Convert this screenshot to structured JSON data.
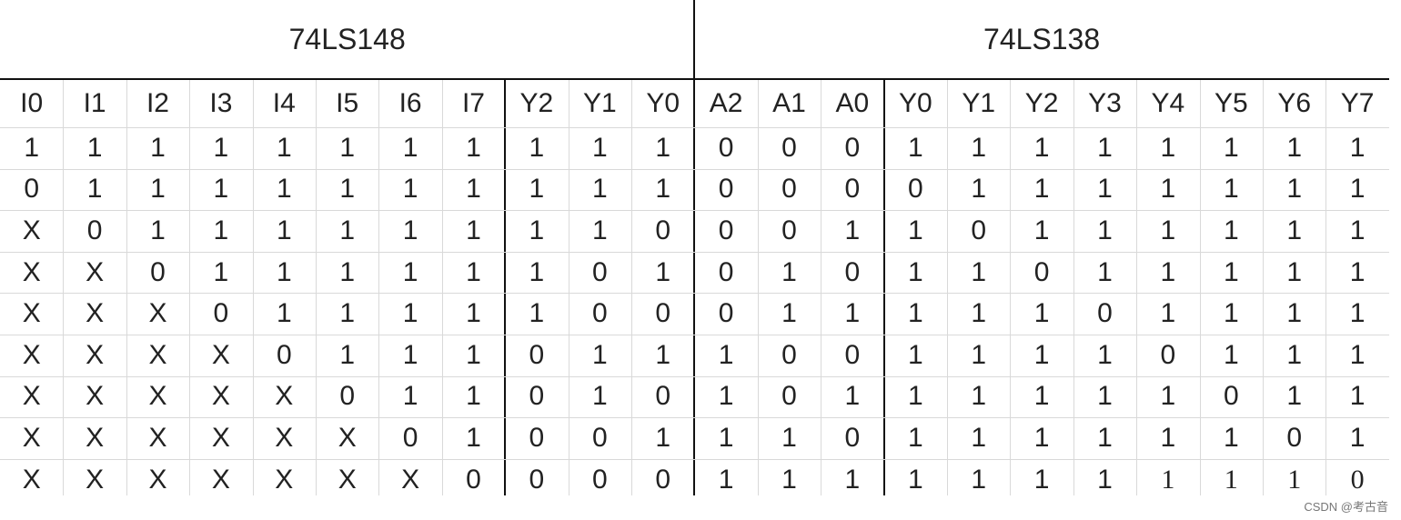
{
  "table": {
    "groups": [
      "74LS148",
      "74LS138"
    ],
    "header": [
      "I0",
      "I1",
      "I2",
      "I3",
      "I4",
      "I5",
      "I6",
      "I7",
      "Y2",
      "Y1",
      "Y0",
      "A2",
      "A1",
      "A0",
      "Y0",
      "Y1",
      "Y2",
      "Y3",
      "Y4",
      "Y5",
      "Y6",
      "Y7"
    ],
    "rows": [
      [
        "1",
        "1",
        "1",
        "1",
        "1",
        "1",
        "1",
        "1",
        "1",
        "1",
        "1",
        "0",
        "0",
        "0",
        "1",
        "1",
        "1",
        "1",
        "1",
        "1",
        "1",
        "1"
      ],
      [
        "0",
        "1",
        "1",
        "1",
        "1",
        "1",
        "1",
        "1",
        "1",
        "1",
        "1",
        "0",
        "0",
        "0",
        "0",
        "1",
        "1",
        "1",
        "1",
        "1",
        "1",
        "1"
      ],
      [
        "X",
        "0",
        "1",
        "1",
        "1",
        "1",
        "1",
        "1",
        "1",
        "1",
        "0",
        "0",
        "0",
        "1",
        "1",
        "0",
        "1",
        "1",
        "1",
        "1",
        "1",
        "1"
      ],
      [
        "X",
        "X",
        "0",
        "1",
        "1",
        "1",
        "1",
        "1",
        "1",
        "0",
        "1",
        "0",
        "1",
        "0",
        "1",
        "1",
        "0",
        "1",
        "1",
        "1",
        "1",
        "1"
      ],
      [
        "X",
        "X",
        "X",
        "0",
        "1",
        "1",
        "1",
        "1",
        "1",
        "0",
        "0",
        "0",
        "1",
        "1",
        "1",
        "1",
        "1",
        "0",
        "1",
        "1",
        "1",
        "1"
      ],
      [
        "X",
        "X",
        "X",
        "X",
        "0",
        "1",
        "1",
        "1",
        "0",
        "1",
        "1",
        "1",
        "0",
        "0",
        "1",
        "1",
        "1",
        "1",
        "0",
        "1",
        "1",
        "1"
      ],
      [
        "X",
        "X",
        "X",
        "X",
        "X",
        "0",
        "1",
        "1",
        "0",
        "1",
        "0",
        "1",
        "0",
        "1",
        "1",
        "1",
        "1",
        "1",
        "1",
        "0",
        "1",
        "1"
      ],
      [
        "X",
        "X",
        "X",
        "X",
        "X",
        "X",
        "0",
        "1",
        "0",
        "0",
        "1",
        "1",
        "1",
        "0",
        "1",
        "1",
        "1",
        "1",
        "1",
        "1",
        "0",
        "1"
      ],
      [
        "X",
        "X",
        "X",
        "X",
        "X",
        "X",
        "X",
        "0",
        "0",
        "0",
        "0",
        "1",
        "1",
        "1",
        "1",
        "1",
        "1",
        "1",
        "1",
        "1",
        "1",
        "0"
      ]
    ]
  },
  "watermark": "CSDN @考古音"
}
